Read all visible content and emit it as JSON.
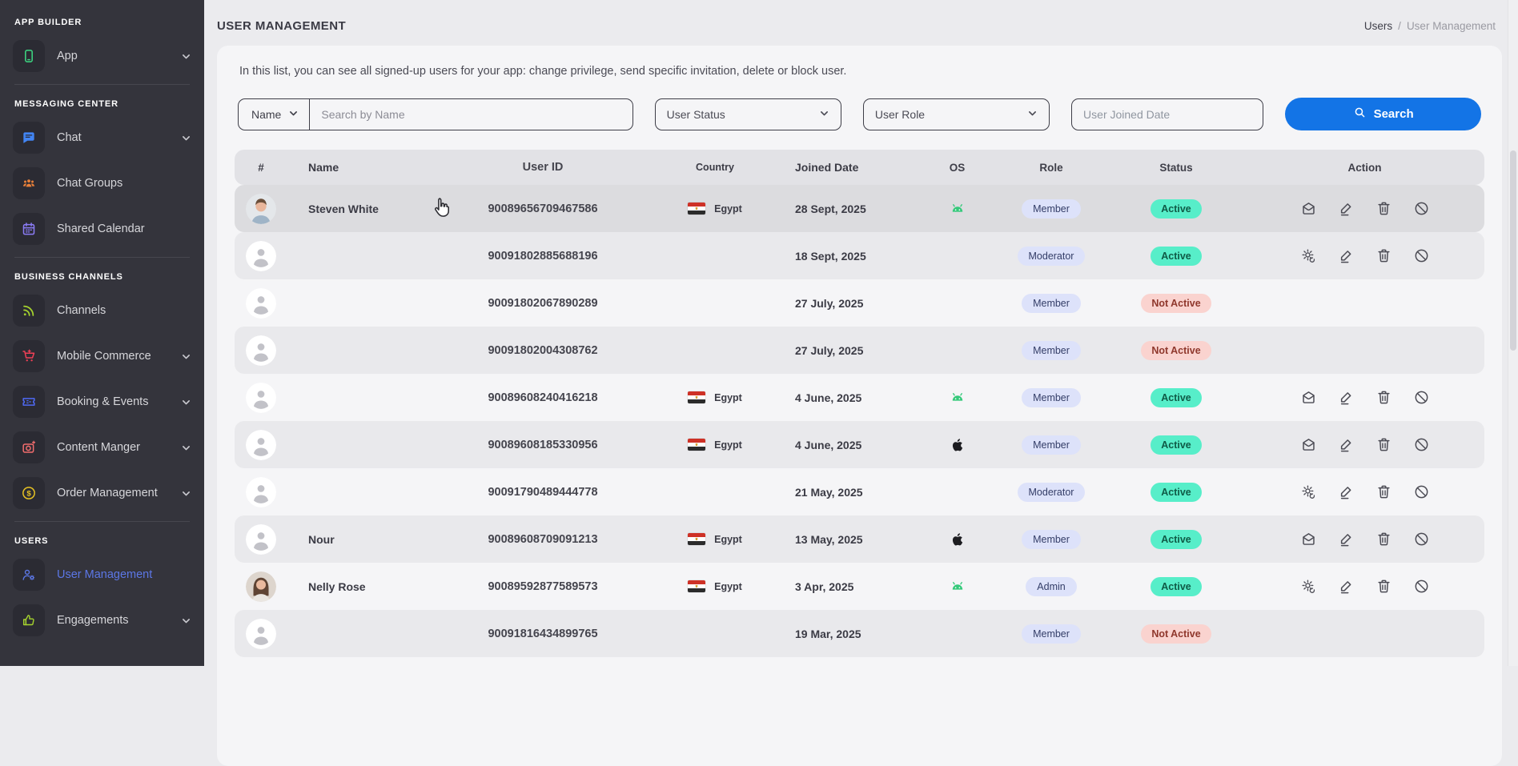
{
  "colors": {
    "accent_blue": "#1374e6",
    "sidebar_active": "#5c77e6",
    "role_badge_bg": "#dde2fa",
    "role_badge_text": "#333d67",
    "active_badge_bg": "#57eec9",
    "active_badge_text": "#0f5a46",
    "inactive_badge_bg": "#fad3cf",
    "inactive_badge_text": "#8f372c"
  },
  "sidebar": {
    "sections": [
      {
        "label": "APP BUILDER",
        "items": [
          {
            "label": "App",
            "icon": "phone-icon",
            "icon_color": "#3ddc84",
            "chevron": true,
            "active": false
          }
        ]
      },
      {
        "label": "MESSAGING CENTER",
        "items": [
          {
            "label": "Chat",
            "icon": "chat-icon",
            "icon_color": "#4285f4",
            "chevron": true,
            "active": false
          },
          {
            "label": "Chat Groups",
            "icon": "people-icon",
            "icon_color": "#e8803a",
            "chevron": false,
            "active": false
          },
          {
            "label": "Shared Calendar",
            "icon": "calendar-icon",
            "icon_color": "#8b7cf6",
            "chevron": false,
            "active": false
          }
        ]
      },
      {
        "label": "BUSINESS CHANNELS",
        "items": [
          {
            "label": "Channels",
            "icon": "rss-icon",
            "icon_color": "#a5d32e",
            "chevron": false,
            "active": false
          },
          {
            "label": "Mobile Commerce",
            "icon": "cart-icon",
            "icon_color": "#ef4056",
            "chevron": true,
            "active": false
          },
          {
            "label": "Booking & Events",
            "icon": "ticket-icon",
            "icon_color": "#4f6af5",
            "chevron": true,
            "active": false
          },
          {
            "label": "Content Manger",
            "icon": "camera-icon",
            "icon_color": "#f26d6d",
            "chevron": true,
            "active": false
          },
          {
            "label": "Order Management",
            "icon": "dollar-icon",
            "icon_color": "#e8c323",
            "chevron": true,
            "active": false
          }
        ]
      },
      {
        "label": "USERS",
        "items": [
          {
            "label": "User Management",
            "icon": "user-gear-icon",
            "icon_color": "#5c77e6",
            "chevron": false,
            "active": true
          },
          {
            "label": "Engagements",
            "icon": "thumbs-up-icon",
            "icon_color": "#a5d32e",
            "chevron": true,
            "active": false
          }
        ]
      }
    ]
  },
  "header": {
    "title": "USER MANAGEMENT",
    "breadcrumb_parent": "Users",
    "breadcrumb_separator": "/",
    "breadcrumb_current": "User Management"
  },
  "intro": "In this list, you can see all signed-up users for your app: change privilege, send specific invitation, delete or block user.",
  "filters": {
    "name_selector": "Name",
    "search_placeholder": "Search by Name",
    "user_status": "User Status",
    "user_role": "User Role",
    "joined_date_placeholder": "User Joined Date",
    "search_button": "Search"
  },
  "table": {
    "columns": [
      "#",
      "Name",
      "User ID",
      "Country",
      "Joined Date",
      "OS",
      "Role",
      "Status",
      "Action"
    ],
    "rows": [
      {
        "name": "Steven White",
        "avatar": "photo-male",
        "user_id": "90089656709467586",
        "country": "Egypt",
        "joined": "28 Sept, 2025",
        "os": "android",
        "role": "Member",
        "status": "Active",
        "actions": [
          "mail",
          "edit",
          "delete",
          "block"
        ],
        "hovered": true
      },
      {
        "name": "",
        "avatar": "placeholder",
        "user_id": "90091802885688196",
        "country": "",
        "joined": "18 Sept, 2025",
        "os": "",
        "role": "Moderator",
        "status": "Active",
        "actions": [
          "settings",
          "edit",
          "delete",
          "block"
        ],
        "hovered": false
      },
      {
        "name": "",
        "avatar": "placeholder",
        "user_id": "90091802067890289",
        "country": "",
        "joined": "27 July, 2025",
        "os": "",
        "role": "Member",
        "status": "Not Active",
        "actions": [],
        "hovered": false
      },
      {
        "name": "",
        "avatar": "placeholder",
        "user_id": "90091802004308762",
        "country": "",
        "joined": "27 July, 2025",
        "os": "",
        "role": "Member",
        "status": "Not Active",
        "actions": [],
        "hovered": false
      },
      {
        "name": "",
        "avatar": "placeholder",
        "user_id": "90089608240416218",
        "country": "Egypt",
        "joined": "4 June, 2025",
        "os": "android",
        "role": "Member",
        "status": "Active",
        "actions": [
          "mail",
          "edit",
          "delete",
          "block"
        ],
        "hovered": false
      },
      {
        "name": "",
        "avatar": "placeholder",
        "user_id": "90089608185330956",
        "country": "Egypt",
        "joined": "4 June, 2025",
        "os": "apple",
        "role": "Member",
        "status": "Active",
        "actions": [
          "mail",
          "edit",
          "delete",
          "block"
        ],
        "hovered": false
      },
      {
        "name": "",
        "avatar": "placeholder",
        "user_id": "90091790489444778",
        "country": "",
        "joined": "21 May, 2025",
        "os": "",
        "role": "Moderator",
        "status": "Active",
        "actions": [
          "settings",
          "edit",
          "delete",
          "block"
        ],
        "hovered": false
      },
      {
        "name": "Nour",
        "avatar": "placeholder",
        "user_id": "90089608709091213",
        "country": "Egypt",
        "joined": "13 May, 2025",
        "os": "apple",
        "role": "Member",
        "status": "Active",
        "actions": [
          "mail",
          "edit",
          "delete",
          "block"
        ],
        "hovered": false
      },
      {
        "name": "Nelly Rose",
        "avatar": "photo-female",
        "user_id": "90089592877589573",
        "country": "Egypt",
        "joined": "3 Apr, 2025",
        "os": "android",
        "role": "Admin",
        "status": "Active",
        "actions": [
          "settings",
          "edit",
          "delete",
          "block"
        ],
        "hovered": false
      },
      {
        "name": "",
        "avatar": "placeholder",
        "user_id": "90091816434899765",
        "country": "",
        "joined": "19 Mar, 2025",
        "os": "",
        "role": "Member",
        "status": "Not Active",
        "actions": [],
        "hovered": false
      }
    ]
  }
}
